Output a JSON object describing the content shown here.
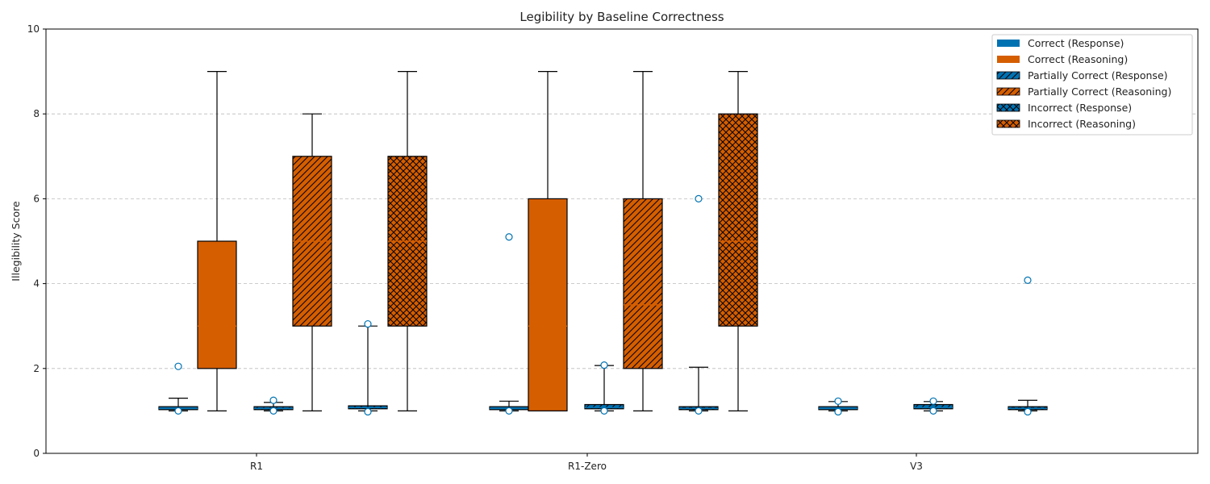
{
  "chart_data": {
    "type": "box",
    "title": "Legibility by Baseline Correctness",
    "xlabel": "",
    "ylabel": "Illegibility Score",
    "ylim": [
      0,
      10
    ],
    "yticks": [
      0,
      2,
      4,
      6,
      8,
      10
    ],
    "grid": "y-dashed",
    "legend_position": "top-right",
    "categories": [
      "R1",
      "R1-Zero",
      "V3"
    ],
    "colors": {
      "response": "#0072b2",
      "reasoning": "#d55e00"
    },
    "series": [
      {
        "name": "Correct (Response)",
        "kind": "response",
        "hatch": "none"
      },
      {
        "name": "Correct (Reasoning)",
        "kind": "reasoning",
        "hatch": "none"
      },
      {
        "name": "Partially Correct (Response)",
        "kind": "response",
        "hatch": "diag"
      },
      {
        "name": "Partially Correct (Reasoning)",
        "kind": "reasoning",
        "hatch": "diag"
      },
      {
        "name": "Incorrect (Response)",
        "kind": "response",
        "hatch": "cross"
      },
      {
        "name": "Incorrect (Reasoning)",
        "kind": "reasoning",
        "hatch": "cross"
      }
    ],
    "boxes": [
      {
        "category": "R1",
        "series": 0,
        "whisker_low": 1.0,
        "q1": 1.03,
        "median": 1.06,
        "q3": 1.1,
        "whisker_high": 1.3,
        "outliers": [
          2.05,
          1.0
        ]
      },
      {
        "category": "R1",
        "series": 1,
        "whisker_low": 1.0,
        "q1": 2.0,
        "median": 3.0,
        "q3": 5.0,
        "whisker_high": 9.0,
        "outliers": []
      },
      {
        "category": "R1",
        "series": 2,
        "whisker_low": 1.0,
        "q1": 1.03,
        "median": 1.06,
        "q3": 1.1,
        "whisker_high": 1.2,
        "outliers": [
          1.25,
          1.0
        ]
      },
      {
        "category": "R1",
        "series": 3,
        "whisker_low": 1.0,
        "q1": 3.0,
        "median": 5.0,
        "q3": 7.0,
        "whisker_high": 8.0,
        "outliers": []
      },
      {
        "category": "R1",
        "series": 4,
        "whisker_low": 1.0,
        "q1": 1.05,
        "median": 1.08,
        "q3": 1.12,
        "whisker_high": 3.0,
        "outliers": [
          3.05,
          0.98
        ]
      },
      {
        "category": "R1",
        "series": 5,
        "whisker_low": 1.0,
        "q1": 3.0,
        "median": 5.0,
        "q3": 7.0,
        "whisker_high": 9.0,
        "outliers": []
      },
      {
        "category": "R1-Zero",
        "series": 0,
        "whisker_low": 1.0,
        "q1": 1.03,
        "median": 1.06,
        "q3": 1.1,
        "whisker_high": 1.23,
        "outliers": [
          5.1,
          1.0
        ]
      },
      {
        "category": "R1-Zero",
        "series": 1,
        "whisker_low": 1.0,
        "q1": 1.0,
        "median": 3.0,
        "q3": 6.0,
        "whisker_high": 9.0,
        "outliers": []
      },
      {
        "category": "R1-Zero",
        "series": 2,
        "whisker_low": 1.0,
        "q1": 1.05,
        "median": 1.08,
        "q3": 1.15,
        "whisker_high": 2.07,
        "outliers": [
          2.08,
          1.0
        ]
      },
      {
        "category": "R1-Zero",
        "series": 3,
        "whisker_low": 1.0,
        "q1": 2.0,
        "median": 3.5,
        "q3": 6.0,
        "whisker_high": 9.0,
        "outliers": []
      },
      {
        "category": "R1-Zero",
        "series": 4,
        "whisker_low": 1.0,
        "q1": 1.03,
        "median": 1.06,
        "q3": 1.1,
        "whisker_high": 2.03,
        "outliers": [
          6.0,
          1.0
        ]
      },
      {
        "category": "R1-Zero",
        "series": 5,
        "whisker_low": 1.0,
        "q1": 3.0,
        "median": 5.0,
        "q3": 8.0,
        "whisker_high": 9.0,
        "outliers": []
      },
      {
        "category": "V3",
        "series": 0,
        "whisker_low": 1.0,
        "q1": 1.03,
        "median": 1.06,
        "q3": 1.1,
        "whisker_high": 1.22,
        "outliers": [
          1.23,
          0.98
        ]
      },
      {
        "category": "V3",
        "series": 2,
        "whisker_low": 1.0,
        "q1": 1.05,
        "median": 1.08,
        "q3": 1.15,
        "whisker_high": 1.22,
        "outliers": [
          1.23,
          1.0
        ]
      },
      {
        "category": "V3",
        "series": 4,
        "whisker_low": 1.0,
        "q1": 1.03,
        "median": 1.06,
        "q3": 1.1,
        "whisker_high": 1.25,
        "outliers": [
          4.08,
          0.98
        ]
      }
    ]
  }
}
